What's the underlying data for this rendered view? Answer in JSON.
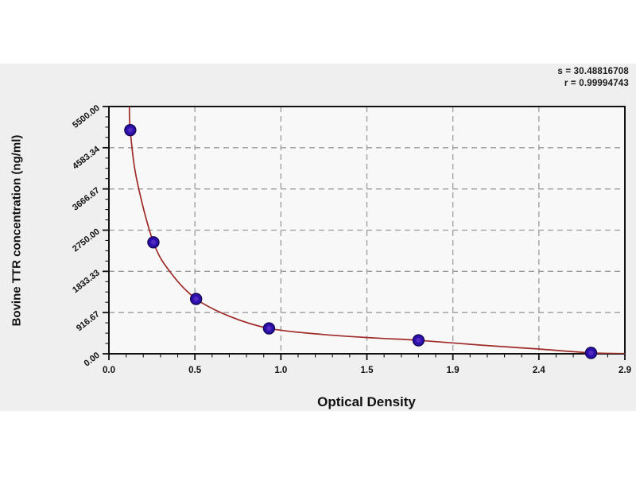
{
  "stats": {
    "s_label": "s = 30.48816708",
    "r_label": "r = 0.99994743"
  },
  "chart_data": {
    "type": "scatter",
    "title": "",
    "xlabel": "Optical Density",
    "ylabel": "Bovine TTR concentration (ng/ml)",
    "xlim": [
      0,
      2.9
    ],
    "ylim": [
      0,
      5500
    ],
    "grid": "dashed-major",
    "legend": "none",
    "x_ticks": {
      "values": [
        0,
        0.4833,
        0.9667,
        1.45,
        1.9333,
        2.4167,
        2.9
      ],
      "labels": [
        "0.0",
        "0.5",
        "1.0",
        "1.5",
        "1.9",
        "2.4",
        "2.9"
      ],
      "minor_divisions": 5
    },
    "y_ticks": {
      "values": [
        0,
        916.67,
        1833.33,
        2750,
        3666.67,
        4583.34,
        5500
      ],
      "labels": [
        "0.00",
        "916.67",
        "1833.33",
        "2750.00",
        "3666.67",
        "4583.34",
        "5500.00"
      ],
      "minor_divisions": 4
    },
    "points": [
      [
        0.12,
        4975
      ],
      [
        0.25,
        2480
      ],
      [
        0.49,
        1220
      ],
      [
        0.9,
        565
      ],
      [
        1.74,
        300
      ],
      [
        2.71,
        20
      ]
    ],
    "fit_curve": [
      [
        0.115,
        5500
      ],
      [
        0.12,
        4975
      ],
      [
        0.155,
        3900
      ],
      [
        0.25,
        2480
      ],
      [
        0.35,
        1790
      ],
      [
        0.49,
        1220
      ],
      [
        0.68,
        830
      ],
      [
        0.9,
        565
      ],
      [
        1.2,
        430
      ],
      [
        1.5,
        350
      ],
      [
        1.74,
        300
      ],
      [
        2.1,
        190
      ],
      [
        2.4,
        110
      ],
      [
        2.71,
        20
      ],
      [
        2.9,
        5
      ]
    ],
    "colors": {
      "curve": "#9e2b28",
      "marker": "#2d10ac",
      "marker_edge": "#150555",
      "marker_center": "#5b2fc4",
      "grid": "#9b9b9b",
      "frame": "#111111",
      "panel_bg": "#efefef",
      "plot_bg": "#f8f8f8",
      "text": "#1a1a1a"
    }
  }
}
